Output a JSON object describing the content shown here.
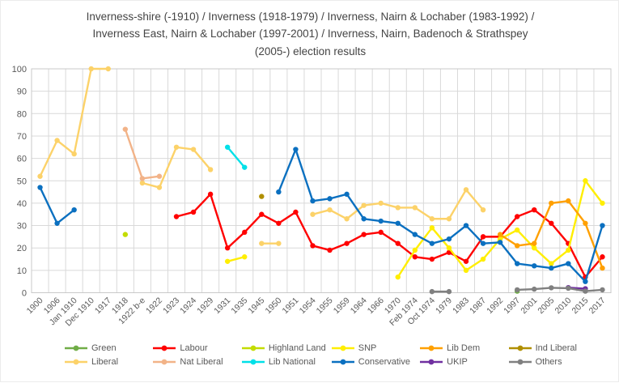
{
  "title_lines": [
    "Inverness-shire (-1910) / Inverness (1918-1979) / Inverness, Nairn & Lochaber (1983-1992) /",
    "Inverness East, Nairn & Lochaber (1997-2001) / Inverness, Nairn, Badenoch & Strathspey",
    "(2005-) election results"
  ],
  "chart_data": {
    "type": "line",
    "title": "Inverness-shire (-1910) / Inverness (1918-1979) / Inverness, Nairn & Lochaber (1983-1992) / Inverness East, Nairn & Lochaber (1997-2001) / Inverness, Nairn, Badenoch & Strathspey (2005-) election results",
    "xlabel": "",
    "ylabel": "",
    "ylim": [
      0,
      100
    ],
    "yticks": [
      0,
      10,
      20,
      30,
      40,
      50,
      60,
      70,
      80,
      90,
      100
    ],
    "grid": true,
    "legend_position": "bottom",
    "categories": [
      "1900",
      "1906",
      "Jan 1910",
      "Dec 1910",
      "1917",
      "1918",
      "1922 b-e",
      "1922",
      "1923",
      "1924",
      "1929",
      "1931",
      "1935",
      "1945",
      "1950",
      "1951",
      "1954",
      "1955",
      "1959",
      "1964",
      "1966",
      "1970",
      "Feb 1974",
      "Oct 1974",
      "1979",
      "1983",
      "1987",
      "1992",
      "1997",
      "2001",
      "2005",
      "2010",
      "2015",
      "2017"
    ],
    "series": [
      {
        "name": "Green",
        "color": "#70ad47",
        "points": {
          "1997": 0.7,
          "2015": 0.9
        }
      },
      {
        "name": "Labour",
        "color": "#ff0000",
        "points": {
          "1923": 34,
          "1924": 36,
          "1929": 44,
          "1931": 20,
          "1935": 27,
          "1945": 35,
          "1950": 31,
          "1951": 36,
          "1954": 21,
          "1955": 19,
          "1959": 22,
          "1964": 26,
          "1966": 27,
          "1970": 22,
          "Feb 1974": 16,
          "Oct 1974": 15,
          "1979": 18,
          "1983": 14,
          "1987": 25,
          "1992": 25,
          "1997": 34,
          "2001": 37,
          "2005": 31,
          "2010": 22,
          "2015": 7,
          "2017": 16
        }
      },
      {
        "name": "Highland Land",
        "color": "#c3dc00",
        "points": {
          "1918": 26
        }
      },
      {
        "name": "SNP",
        "color": "#ffee00",
        "points": {
          "1931": 14,
          "1935": 16,
          "1970": 7,
          "Feb 1974": 19,
          "Oct 1974": 29,
          "1979": 20,
          "1983": 10,
          "1987": 15,
          "1992": 24,
          "1997": 28,
          "2001": 20,
          "2005": 13,
          "2010": 19,
          "2015": 50,
          "2017": 40
        }
      },
      {
        "name": "Lib Dem",
        "color": "#ffa000",
        "points": {
          "1992": 26,
          "1997": 21,
          "2001": 22,
          "2005": 40,
          "2010": 41,
          "2015": 31,
          "2017": 11
        }
      },
      {
        "name": "Ind Liberal",
        "color": "#b08f00",
        "points": {
          "1945": 43
        }
      },
      {
        "name": "Liberal",
        "color": "#fcd269",
        "points": {
          "1900": 52,
          "1906": 68,
          "Jan 1910": 62,
          "Dec 1910": 100,
          "1917": 100,
          "1922 b-e": 49,
          "1922": 47,
          "1923": 65,
          "1924": 64,
          "1929": 55,
          "1945": 22,
          "1950": 22,
          "1954": 35,
          "1955": 37,
          "1959": 33,
          "1964": 39,
          "1966": 40,
          "1970": 38,
          "Feb 1974": 38,
          "Oct 1974": 33,
          "1979": 33,
          "1983": 46,
          "1987": 37
        }
      },
      {
        "name": "Nat Liberal",
        "color": "#f2b388",
        "points": {
          "1918": 73,
          "1922 b-e": 51,
          "1922": 52
        }
      },
      {
        "name": "Lib National",
        "color": "#00e0e8",
        "points": {
          "1931": 65,
          "1935": 56
        }
      },
      {
        "name": "Conservative",
        "color": "#0b70c0",
        "points": {
          "1900": 47,
          "1906": 31,
          "Jan 1910": 37,
          "1950": 45,
          "1951": 64,
          "1954": 41,
          "1955": 42,
          "1959": 44,
          "1964": 33,
          "1966": 32,
          "1970": 31,
          "Feb 1974": 26,
          "Oct 1974": 22,
          "1979": 24,
          "1983": 30,
          "1987": 22,
          "1992": 22.5,
          "1997": 13,
          "2001": 12,
          "2005": 11,
          "2010": 13,
          "2015": 5,
          "2017": 30
        }
      },
      {
        "name": "UKIP",
        "color": "#7030a0",
        "points": {
          "2010": 2.3,
          "2015": 1.8
        }
      },
      {
        "name": "Others",
        "color": "#808080",
        "points": {
          "Oct 1974": 0.5,
          "1979": 0.5,
          "1997": 1.3,
          "2001": 1.6,
          "2005": 2.2,
          "2010": 2,
          "2015": 0.7,
          "2017": 1.3
        }
      }
    ]
  }
}
